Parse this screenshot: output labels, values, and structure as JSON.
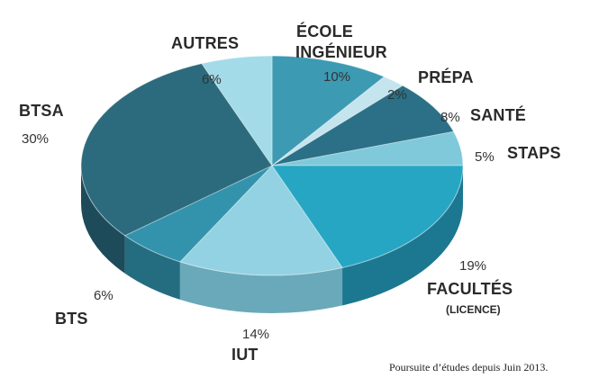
{
  "chart_data": {
    "type": "pie",
    "style": "3d",
    "slices": [
      {
        "label": "ÉCOLE INGÉNIEUR",
        "value": 10,
        "value_label": "10%",
        "color": "#3d9ab3",
        "side": "#2a7085"
      },
      {
        "label": "PRÉPA",
        "value": 2,
        "value_label": "2%",
        "color": "#c4e4ee",
        "side": "#9ec3cf"
      },
      {
        "label": "SANTÉ",
        "value": 8,
        "value_label": "8%",
        "color": "#2b7086",
        "side": "#1c5060"
      },
      {
        "label": "STAPS",
        "value": 5,
        "value_label": "5%",
        "color": "#7fc9db",
        "side": "#5ea7b8"
      },
      {
        "label": "FACULTÉS",
        "sublabel": "(LICENCE)",
        "value": 19,
        "value_label": "19%",
        "color": "#27a6c4",
        "side": "#1c7890"
      },
      {
        "label": "IUT",
        "value": 14,
        "value_label": "14%",
        "color": "#93d2e3",
        "side": "#6aa9ba"
      },
      {
        "label": "BTS",
        "value": 6,
        "value_label": "6%",
        "color": "#3393ac",
        "side": "#246d80"
      },
      {
        "label": "BTSA",
        "value": 30,
        "value_label": "30%",
        "color": "#2c6b7d",
        "side": "#1d4b59"
      },
      {
        "label": "AUTRES",
        "value": 6,
        "value_label": "6%",
        "color": "#a4dbe8",
        "side": "#7ab5c4"
      }
    ]
  },
  "caption": "Poursuite d’études depuis Juin 2013."
}
